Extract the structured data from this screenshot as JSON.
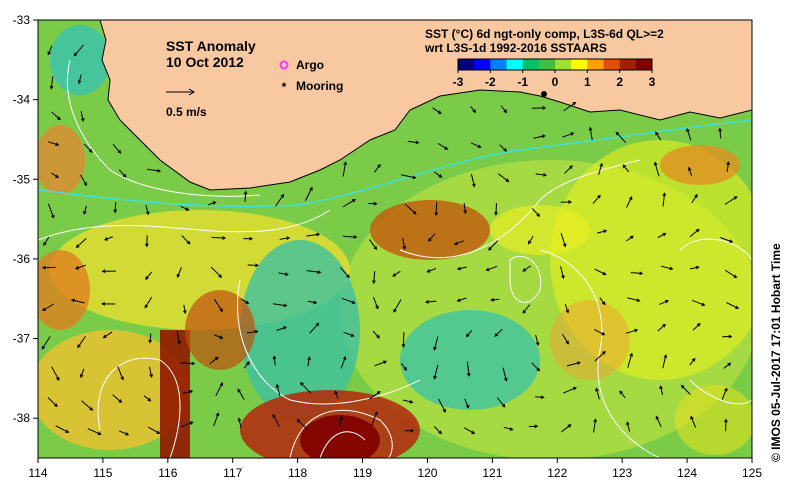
{
  "title": {
    "line1": "SST Anomaly",
    "line2": "10 Oct 2012"
  },
  "vector_scale_label": "0.5 m/s",
  "markers": {
    "argo_label": "Argo",
    "mooring_label": "Mooring",
    "argo_color": "#ff33ff",
    "mooring_color": "#000000"
  },
  "colorbar": {
    "title_line1": "SST (°C) 6d ngt-only comp, L3S-6d QL>=2",
    "title_line2": "wrt L3S-1d 1992-2016 SSTAARS",
    "ticks": [
      "-3",
      "-2",
      "-1",
      "0",
      "1",
      "2",
      "3"
    ],
    "colors": [
      "#00007f",
      "#0000ff",
      "#007fff",
      "#00ffff",
      "#00c06a",
      "#40c040",
      "#a0e030",
      "#ffff00",
      "#ffa000",
      "#e05000",
      "#a02000",
      "#800000"
    ]
  },
  "credit": "© IMOS 05-Jul-2017 17:01 Hobart Time",
  "land_color": "#f8c8a0",
  "axes": {
    "x_ticks": [
      "114",
      "115",
      "116",
      "117",
      "118",
      "119",
      "120",
      "121",
      "122",
      "123",
      "124",
      "125"
    ],
    "y_ticks": [
      "-33",
      "-34",
      "-35",
      "-36",
      "-37",
      "-38"
    ],
    "lon_range": [
      114,
      125
    ],
    "lat_range": [
      -38.5,
      -33
    ]
  }
}
